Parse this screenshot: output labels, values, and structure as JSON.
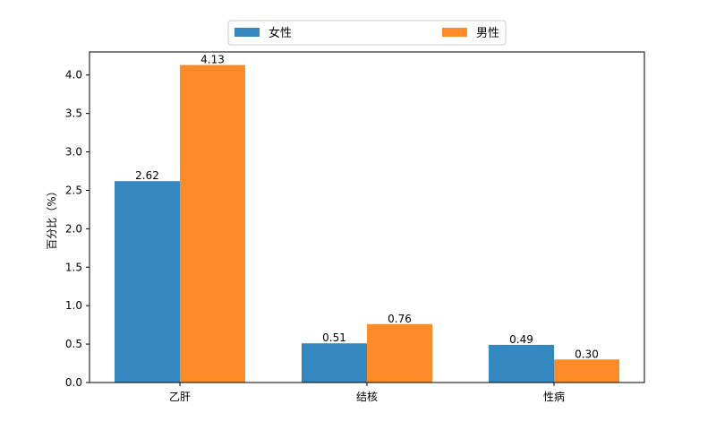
{
  "chart_data": {
    "type": "bar",
    "categories": [
      "乙肝",
      "结核",
      "性病"
    ],
    "series": [
      {
        "name": "女性",
        "values": [
          2.62,
          0.51,
          0.49
        ],
        "color": "#3587c0",
        "labels": [
          "2.62",
          "0.51",
          "0.49"
        ]
      },
      {
        "name": "男性",
        "values": [
          4.13,
          0.76,
          0.3
        ],
        "color": "#fd8b28",
        "labels": [
          "4.13",
          "0.76",
          "0.30"
        ]
      }
    ],
    "title": "",
    "xlabel": "",
    "ylabel": "百分比（%）",
    "ylim": [
      0,
      4.3
    ],
    "yticks": [
      0.0,
      0.5,
      1.0,
      1.5,
      2.0,
      2.5,
      3.0,
      3.5,
      4.0
    ],
    "ytick_labels": [
      "0.0",
      "0.5",
      "1.0",
      "1.5",
      "2.0",
      "2.5",
      "3.0",
      "3.5",
      "4.0"
    ],
    "grid": false,
    "legend_position": "top-center"
  }
}
